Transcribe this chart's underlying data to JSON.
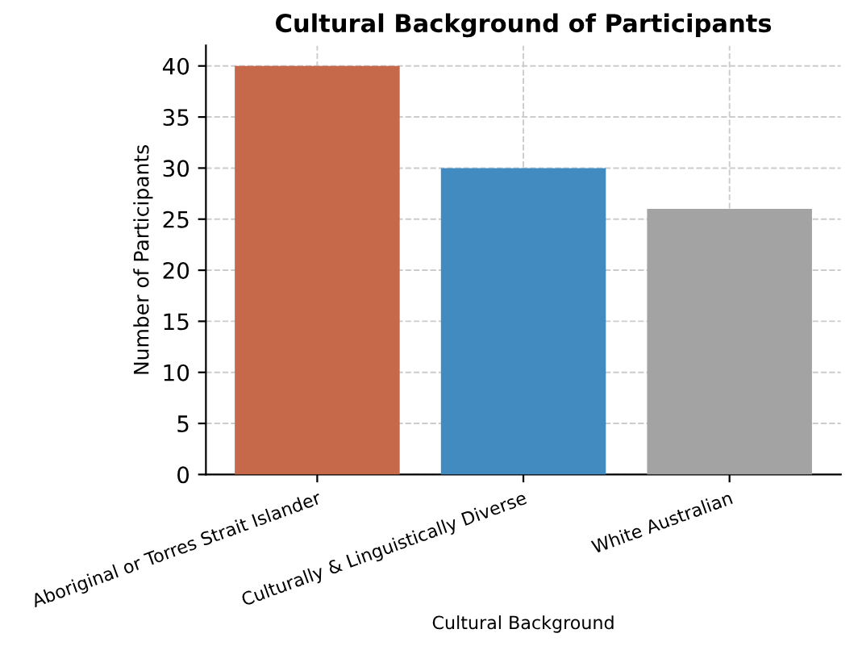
{
  "chart_data": {
    "type": "bar",
    "title": "Cultural Background of Participants",
    "xlabel": "Cultural Background",
    "ylabel": "Number of Participants",
    "categories": [
      "Aboriginal or Torres Strait Islander",
      "Culturally & Linguistically Diverse",
      "White Australian"
    ],
    "values": [
      40,
      30,
      26
    ],
    "colors": [
      "#c5694a",
      "#428bc1",
      "#a3a3a3"
    ],
    "ylim": [
      0,
      42
    ],
    "yticks": [
      0,
      5,
      10,
      15,
      20,
      25,
      30,
      35,
      40
    ],
    "grid": true
  }
}
